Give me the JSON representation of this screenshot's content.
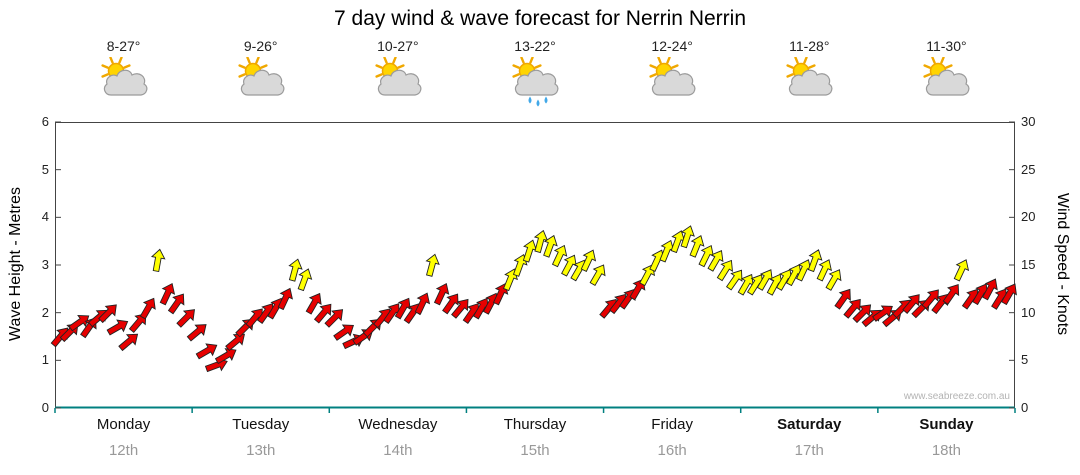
{
  "title": "7 day wind & wave forecast for Nerrin Nerrin",
  "watermark": "www.seabreeze.com.au",
  "axes": {
    "left_label": "Wave Height - Metres",
    "right_label": "Wind Speed - Knots",
    "left_ticks": [
      0,
      1,
      2,
      3,
      4,
      5,
      6
    ],
    "right_ticks": [
      0,
      5,
      10,
      15,
      20,
      25,
      30
    ]
  },
  "days": [
    {
      "name": "Monday",
      "date": "12th",
      "temp": "8-27°",
      "icon": "sun-cloud",
      "bold": false
    },
    {
      "name": "Tuesday",
      "date": "13th",
      "temp": "9-26°",
      "icon": "sun-cloud",
      "bold": false
    },
    {
      "name": "Wednesday",
      "date": "14th",
      "temp": "10-27°",
      "icon": "sun-cloud",
      "bold": false
    },
    {
      "name": "Thursday",
      "date": "15th",
      "temp": "13-22°",
      "icon": "sun-cloud-rain",
      "bold": false
    },
    {
      "name": "Friday",
      "date": "16th",
      "temp": "12-24°",
      "icon": "sun-cloud",
      "bold": false
    },
    {
      "name": "Saturday",
      "date": "17th",
      "temp": "11-28°",
      "icon": "sun-cloud",
      "bold": true
    },
    {
      "name": "Sunday",
      "date": "18th",
      "temp": "11-30°",
      "icon": "sun-cloud",
      "bold": true
    }
  ],
  "chart_data": {
    "type": "scatter",
    "subtype": "wind-direction-arrows",
    "title": "7 day wind & wave forecast for Nerrin Nerrin",
    "xlabel": "day",
    "x_range_days": [
      0,
      7
    ],
    "left_axis": {
      "label": "Wave Height - Metres",
      "range": [
        0,
        6
      ]
    },
    "right_axis": {
      "label": "Wind Speed - Knots",
      "range": [
        0,
        30
      ]
    },
    "grid": false,
    "legend": "none",
    "colors": {
      "red": "#e60000",
      "yellow": "#ffff00",
      "outline": "#222222",
      "bottom_axis": "#008080"
    },
    "color_rule": {
      "red": "wind < 13 knots",
      "yellow": "wind >= 13 knots"
    },
    "points_format": [
      "t_days",
      "knots",
      "dir_deg_from_north"
    ],
    "points": [
      [
        0.04,
        7.5,
        40
      ],
      [
        0.11,
        8,
        45
      ],
      [
        0.18,
        9,
        55
      ],
      [
        0.25,
        8.5,
        35
      ],
      [
        0.32,
        9.5,
        50
      ],
      [
        0.39,
        10,
        45
      ],
      [
        0.46,
        8.5,
        60
      ],
      [
        0.54,
        7,
        50
      ],
      [
        0.61,
        9,
        40
      ],
      [
        0.68,
        10.5,
        30
      ],
      [
        0.75,
        15.5,
        10
      ],
      [
        0.82,
        12,
        25
      ],
      [
        0.89,
        11,
        35
      ],
      [
        0.96,
        9.5,
        45
      ],
      [
        1.04,
        8,
        50
      ],
      [
        1.11,
        6,
        60
      ],
      [
        1.18,
        4.5,
        70
      ],
      [
        1.25,
        5.5,
        60
      ],
      [
        1.32,
        7,
        50
      ],
      [
        1.39,
        8.5,
        45
      ],
      [
        1.46,
        9.5,
        40
      ],
      [
        1.54,
        10,
        35
      ],
      [
        1.61,
        10.5,
        30
      ],
      [
        1.68,
        11.5,
        25
      ],
      [
        1.75,
        14.5,
        15
      ],
      [
        1.82,
        13.5,
        20
      ],
      [
        1.89,
        11,
        30
      ],
      [
        1.96,
        10,
        40
      ],
      [
        2.04,
        9.5,
        45
      ],
      [
        2.11,
        8,
        55
      ],
      [
        2.18,
        7,
        65
      ],
      [
        2.25,
        7.5,
        55
      ],
      [
        2.32,
        8.5,
        45
      ],
      [
        2.39,
        9.5,
        40
      ],
      [
        2.46,
        10,
        35
      ],
      [
        2.54,
        10.5,
        30
      ],
      [
        2.61,
        10,
        35
      ],
      [
        2.68,
        11,
        25
      ],
      [
        2.75,
        15,
        15
      ],
      [
        2.82,
        12,
        25
      ],
      [
        2.89,
        11,
        35
      ],
      [
        2.96,
        10.5,
        40
      ],
      [
        3.04,
        10,
        35
      ],
      [
        3.11,
        10.5,
        30
      ],
      [
        3.18,
        11,
        28
      ],
      [
        3.25,
        12,
        25
      ],
      [
        3.32,
        13.5,
        22
      ],
      [
        3.39,
        15,
        20
      ],
      [
        3.46,
        16.5,
        18
      ],
      [
        3.54,
        17.5,
        15
      ],
      [
        3.61,
        17,
        20
      ],
      [
        3.68,
        16,
        25
      ],
      [
        3.75,
        15,
        28
      ],
      [
        3.82,
        14.5,
        30
      ],
      [
        3.89,
        15.5,
        25
      ],
      [
        3.96,
        14,
        30
      ],
      [
        4.04,
        10.5,
        40
      ],
      [
        4.11,
        11,
        38
      ],
      [
        4.18,
        11.5,
        35
      ],
      [
        4.25,
        12.5,
        30
      ],
      [
        4.32,
        14,
        28
      ],
      [
        4.39,
        15.5,
        25
      ],
      [
        4.46,
        16.5,
        22
      ],
      [
        4.54,
        17.5,
        20
      ],
      [
        4.61,
        18,
        18
      ],
      [
        4.68,
        17,
        22
      ],
      [
        4.75,
        16,
        26
      ],
      [
        4.82,
        15.5,
        30
      ],
      [
        4.89,
        14.5,
        32
      ],
      [
        4.96,
        13.5,
        35
      ],
      [
        5.04,
        13,
        30
      ],
      [
        5.11,
        13,
        32
      ],
      [
        5.18,
        13.5,
        30
      ],
      [
        5.25,
        13,
        28
      ],
      [
        5.32,
        13.5,
        30
      ],
      [
        5.39,
        14,
        28
      ],
      [
        5.46,
        14.5,
        25
      ],
      [
        5.54,
        15.5,
        20
      ],
      [
        5.61,
        14.5,
        25
      ],
      [
        5.68,
        13.5,
        30
      ],
      [
        5.75,
        11.5,
        35
      ],
      [
        5.82,
        10.5,
        40
      ],
      [
        5.89,
        10,
        45
      ],
      [
        5.96,
        9.5,
        50
      ],
      [
        6.04,
        10,
        55
      ],
      [
        6.11,
        9.5,
        50
      ],
      [
        6.18,
        10.5,
        45
      ],
      [
        6.25,
        11,
        40
      ],
      [
        6.32,
        10.5,
        45
      ],
      [
        6.39,
        11.5,
        40
      ],
      [
        6.46,
        11,
        38
      ],
      [
        6.54,
        12,
        35
      ],
      [
        6.61,
        14.5,
        25
      ],
      [
        6.68,
        11.5,
        35
      ],
      [
        6.75,
        12,
        30
      ],
      [
        6.82,
        12.5,
        28
      ],
      [
        6.89,
        11.5,
        32
      ],
      [
        6.96,
        12,
        30
      ]
    ]
  }
}
